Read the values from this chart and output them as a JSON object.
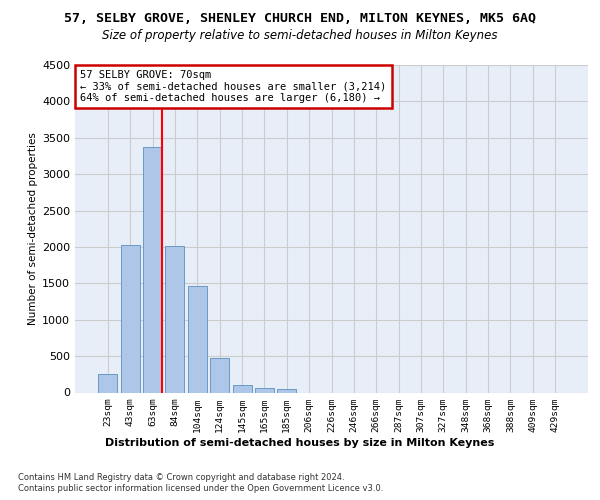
{
  "title_line1": "57, SELBY GROVE, SHENLEY CHURCH END, MILTON KEYNES, MK5 6AQ",
  "title_line2": "Size of property relative to semi-detached houses in Milton Keynes",
  "xlabel": "Distribution of semi-detached houses by size in Milton Keynes",
  "ylabel": "Number of semi-detached properties",
  "footnote1": "Contains HM Land Registry data © Crown copyright and database right 2024.",
  "footnote2": "Contains public sector information licensed under the Open Government Licence v3.0.",
  "bar_labels": [
    "23sqm",
    "43sqm",
    "63sqm",
    "84sqm",
    "104sqm",
    "124sqm",
    "145sqm",
    "165sqm",
    "185sqm",
    "206sqm",
    "226sqm",
    "246sqm",
    "266sqm",
    "287sqm",
    "307sqm",
    "327sqm",
    "348sqm",
    "368sqm",
    "388sqm",
    "409sqm",
    "429sqm"
  ],
  "bar_values": [
    255,
    2020,
    3370,
    2010,
    1460,
    480,
    105,
    55,
    45,
    0,
    0,
    0,
    0,
    0,
    0,
    0,
    0,
    0,
    0,
    0,
    0
  ],
  "bar_color": "#aec6e8",
  "bar_edge_color": "#5a8fc0",
  "red_line_x": 2.425,
  "annotation_text": "57 SELBY GROVE: 70sqm\n← 33% of semi-detached houses are smaller (3,214)\n64% of semi-detached houses are larger (6,180) →",
  "annotation_box_facecolor": "#ffffff",
  "annotation_box_edgecolor": "#cc0000",
  "ylim_max": 4500,
  "yticks": [
    0,
    500,
    1000,
    1500,
    2000,
    2500,
    3000,
    3500,
    4000,
    4500
  ],
  "grid_color": "#cccccc",
  "plot_bg_color": "#e8eef8"
}
